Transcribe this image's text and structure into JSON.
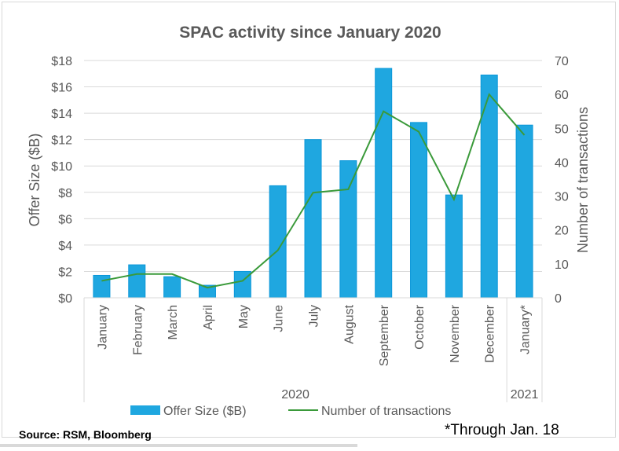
{
  "chart_data": {
    "type": "bar",
    "title": "SPAC activity since January 2020",
    "categories": [
      "January",
      "February",
      "March",
      "April",
      "May",
      "June",
      "July",
      "August",
      "September",
      "October",
      "November",
      "December",
      "January*"
    ],
    "groups": [
      {
        "label": "2020",
        "span": 12
      },
      {
        "label": "2021",
        "span": 1
      }
    ],
    "series": [
      {
        "name": "Offer Size ($B)",
        "type": "bar",
        "axis": "left",
        "color": "#1fa7e0",
        "values": [
          1.7,
          2.5,
          1.6,
          0.95,
          2.0,
          8.5,
          12.0,
          10.4,
          17.4,
          13.3,
          7.8,
          16.9,
          13.1
        ]
      },
      {
        "name": "Number of transactions",
        "type": "line",
        "axis": "right",
        "color": "#3a9a3a",
        "values": [
          5,
          7,
          7,
          3,
          5,
          14,
          31,
          32,
          55,
          49,
          29,
          60,
          48
        ]
      }
    ],
    "ylabel": "Offer Size ($B)",
    "ylabel_right": "Number of transactions",
    "ylim": [
      0,
      18
    ],
    "ylim_right": [
      0,
      70
    ],
    "yticks": [
      "$0",
      "$2",
      "$4",
      "$6",
      "$8",
      "$10",
      "$12",
      "$14",
      "$16",
      "$18"
    ],
    "yticks_right": [
      "0",
      "10",
      "20",
      "30",
      "40",
      "50",
      "60",
      "70"
    ],
    "grid": true,
    "legend": "bottom"
  },
  "footer": {
    "source": "Source: RSM, Bloomberg",
    "note": "*Through Jan. 18"
  }
}
